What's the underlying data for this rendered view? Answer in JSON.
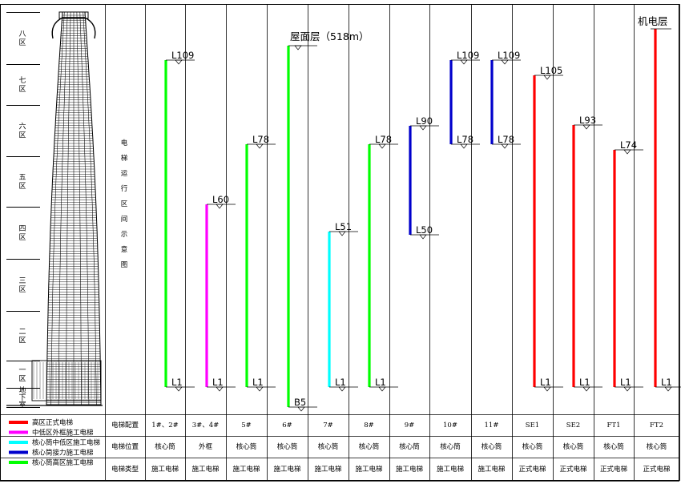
{
  "title_vertical": [
    "电",
    "梯",
    "运",
    "行",
    "区",
    "间",
    "示",
    "意",
    "图"
  ],
  "zones": [
    {
      "id": "8",
      "label": [
        "八",
        "区"
      ]
    },
    {
      "id": "7",
      "label": [
        "七",
        "区"
      ]
    },
    {
      "id": "6",
      "label": [
        "六",
        "区"
      ]
    },
    {
      "id": "5",
      "label": [
        "五",
        "区"
      ]
    },
    {
      "id": "4",
      "label": [
        "四",
        "区"
      ]
    },
    {
      "id": "3",
      "label": [
        "三",
        "区"
      ]
    },
    {
      "id": "2",
      "label": [
        "二",
        "区"
      ]
    },
    {
      "id": "1",
      "label": [
        "一",
        "区"
      ]
    },
    {
      "id": "b",
      "label": [
        "地",
        "下",
        "室"
      ]
    }
  ],
  "roof_label": "屋面层（518m）",
  "machine_label": "机电层",
  "colors": {
    "red": "#ff0000",
    "magenta": "#ff00ff",
    "cyan": "#00ffff",
    "blue": "#0000cc",
    "green": "#00ff00"
  },
  "legend": [
    {
      "color": "red",
      "label": "高区正式电梯"
    },
    {
      "color": "magenta",
      "label": "中低区外框施工电梯"
    },
    {
      "color": "cyan",
      "label": "核心筒中低区施工电梯"
    },
    {
      "color": "blue",
      "label": "核心筒接力施工电梯"
    },
    {
      "color": "green",
      "label": "核心筒高区施工电梯"
    }
  ],
  "row_headers": [
    "电梯配置",
    "电梯位置",
    "电梯类型"
  ],
  "elevators": [
    {
      "config": "1#、2#",
      "position": "核心筒",
      "type": "施工电梯",
      "color": "green",
      "top": "L109",
      "bottom": "L1"
    },
    {
      "config": "3#、4#",
      "position": "外框",
      "type": "施工电梯",
      "color": "magenta",
      "top": "L60",
      "bottom": "L1"
    },
    {
      "config": "5#",
      "position": "核心筒",
      "type": "施工电梯",
      "color": "green",
      "top": "L78",
      "bottom": "L1"
    },
    {
      "config": "6#",
      "position": "核心筒",
      "type": "施工电梯",
      "color": "green",
      "top": "屋面层（518m）",
      "bottom": "B5"
    },
    {
      "config": "7#",
      "position": "核心筒",
      "type": "施工电梯",
      "color": "cyan",
      "top": "L51",
      "bottom": "L1"
    },
    {
      "config": "8#",
      "position": "核心筒",
      "type": "施工电梯",
      "color": "green",
      "top": "L78",
      "bottom": "L1"
    },
    {
      "config": "9#",
      "position": "核心筒",
      "type": "施工电梯",
      "color": "blue",
      "top": "L90",
      "bottom": "L50"
    },
    {
      "config": "10#",
      "position": "核心筒",
      "type": "施工电梯",
      "color": "blue",
      "top": "L109",
      "bottom": "L78"
    },
    {
      "config": "11#",
      "position": "核心筒",
      "type": "施工电梯",
      "color": "blue",
      "top": "L109",
      "bottom": "L78"
    },
    {
      "config": "SE1",
      "position": "核心筒",
      "type": "正式电梯",
      "color": "red",
      "top": "L105",
      "bottom": "L1"
    },
    {
      "config": "SE2",
      "position": "核心筒",
      "type": "正式电梯",
      "color": "red",
      "top": "L93",
      "bottom": "L1"
    },
    {
      "config": "FT1",
      "position": "核心筒",
      "type": "正式电梯",
      "color": "red",
      "top": "L74",
      "bottom": "L1"
    },
    {
      "config": "FT2",
      "position": "核心筒",
      "type": "正式电梯",
      "color": "red",
      "top": "机电层",
      "bottom": "L1"
    }
  ]
}
